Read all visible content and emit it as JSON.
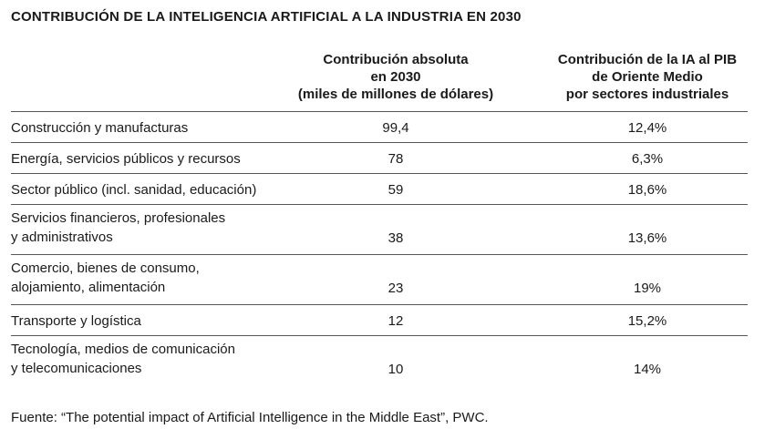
{
  "title": "CONTRIBUCIÓN DE LA INTELIGENCIA ARTIFICIAL A LA INDUSTRIA EN 2030",
  "headers": {
    "col1": [
      "Contribución absoluta",
      "en 2030",
      "(miles de millones de dólares)"
    ],
    "col2": [
      "Contribución de la IA al PIB",
      "de Oriente Medio",
      "por sectores industriales"
    ]
  },
  "rows": [
    {
      "label": [
        "Construcción y manufacturas"
      ],
      "absolute": "99,4",
      "share": "12,4%"
    },
    {
      "label": [
        "Energía, servicios públicos y recursos"
      ],
      "absolute": "78",
      "share": "6,3%"
    },
    {
      "label": [
        "Sector público (incl. sanidad, educación)"
      ],
      "absolute": "59",
      "share": "18,6%"
    },
    {
      "label": [
        "Servicios financieros, profesionales",
        "y administrativos"
      ],
      "absolute": "38",
      "share": "13,6%"
    },
    {
      "label": [
        "Comercio, bienes de consumo,",
        "alojamiento, alimentación"
      ],
      "absolute": "23",
      "share": "19%"
    },
    {
      "label": [
        "Transporte y logística"
      ],
      "absolute": "12",
      "share": "15,2%"
    },
    {
      "label": [
        "Tecnología, medios de comunicación",
        "y telecomunicaciones"
      ],
      "absolute": "10",
      "share": "14%"
    }
  ],
  "source": "Fuente: “The potential impact of Artificial Intelligence in the Middle East”, PWC."
}
